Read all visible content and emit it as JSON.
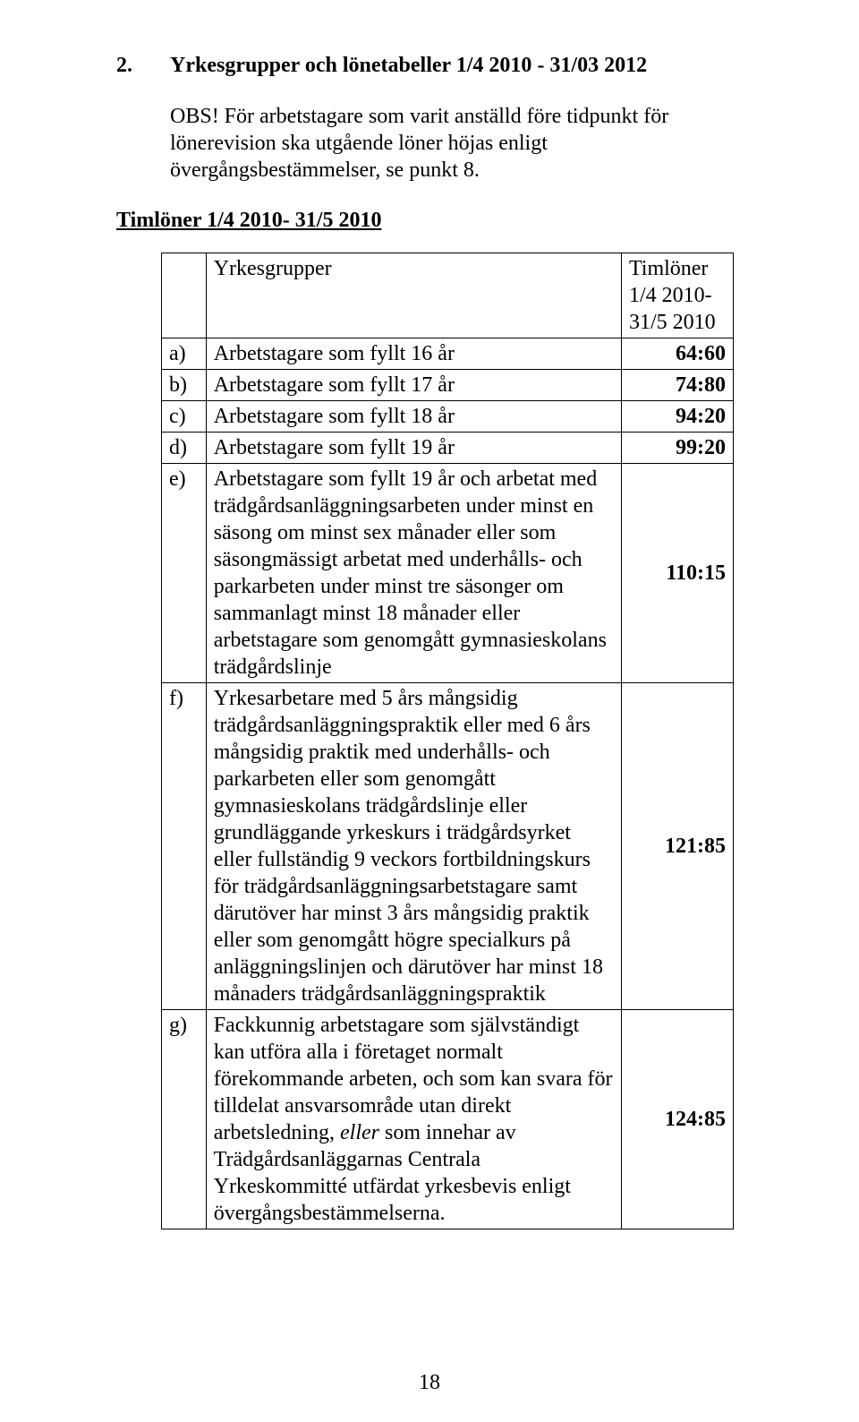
{
  "heading": {
    "number": "2.",
    "title": "Yrkesgrupper och lönetabeller 1/4 2010 - 31/03 2012"
  },
  "obs": "OBS! För arbetstagare som varit anställd före tidpunkt för lönerevision ska utgående löner höjas enligt övergångsbestämmelser, se punkt 8.",
  "subhead": "Timlöner 1/4 2010- 31/5 2010",
  "tableHeader": {
    "left": "Yrkesgrupper",
    "right": "Timlöner 1/4 2010- 31/5 2010"
  },
  "rows": [
    {
      "letter": "a)",
      "desc": "Arbetstagare som fyllt 16 år",
      "value": "64:60"
    },
    {
      "letter": "b)",
      "desc": "Arbetstagare som fyllt 17 år",
      "value": "74:80"
    },
    {
      "letter": "c)",
      "desc": "Arbetstagare som fyllt 18 år",
      "value": "94:20"
    },
    {
      "letter": "d)",
      "desc": "Arbetstagare som fyllt 19 år",
      "value": "99:20"
    },
    {
      "letter": "e)",
      "desc": "Arbetstagare som fyllt 19 år och arbetat med trädgårdsanläggningsarbeten under minst en säsong om minst sex månader eller som säsongmässigt arbetat med underhålls- och parkarbeten under minst tre säsonger om sammanlagt minst 18 månader eller arbetstagare som genomgått gymnasieskolans trädgårdslinje",
      "value": "110:15"
    },
    {
      "letter": "f)",
      "desc": "Yrkesarbetare med 5 års mångsidig trädgårdsanläggningspraktik eller med 6 års mångsidig praktik med underhålls- och parkarbeten eller som genomgått gymnasieskolans trädgårdslinje eller grundläggande yrkeskurs i trädgårdsyrket eller fullständig 9 veckors fortbildningskurs för trädgårdsanläggningsarbetstagare samt därutöver har minst 3 års mångsidig praktik eller som genomgått högre specialkurs på anläggningslinjen och därutöver har minst 18 månaders trädgårdsanläggningspraktik",
      "value": "121:85"
    },
    {
      "letter": "g)",
      "desc_html": "Fackkunnig arbetstagare som självständigt kan utföra alla i företaget normalt förekommande arbeten, och som kan svara för tilldelat ansvarsområde utan direkt arbetsledning, <i>eller</i> som innehar av Trädgårdsanläggarnas Centrala Yrkeskommitté utfärdat yrkesbevis enligt övergångsbestämmelserna.",
      "value": "124:85"
    }
  ],
  "pageNumber": "18"
}
